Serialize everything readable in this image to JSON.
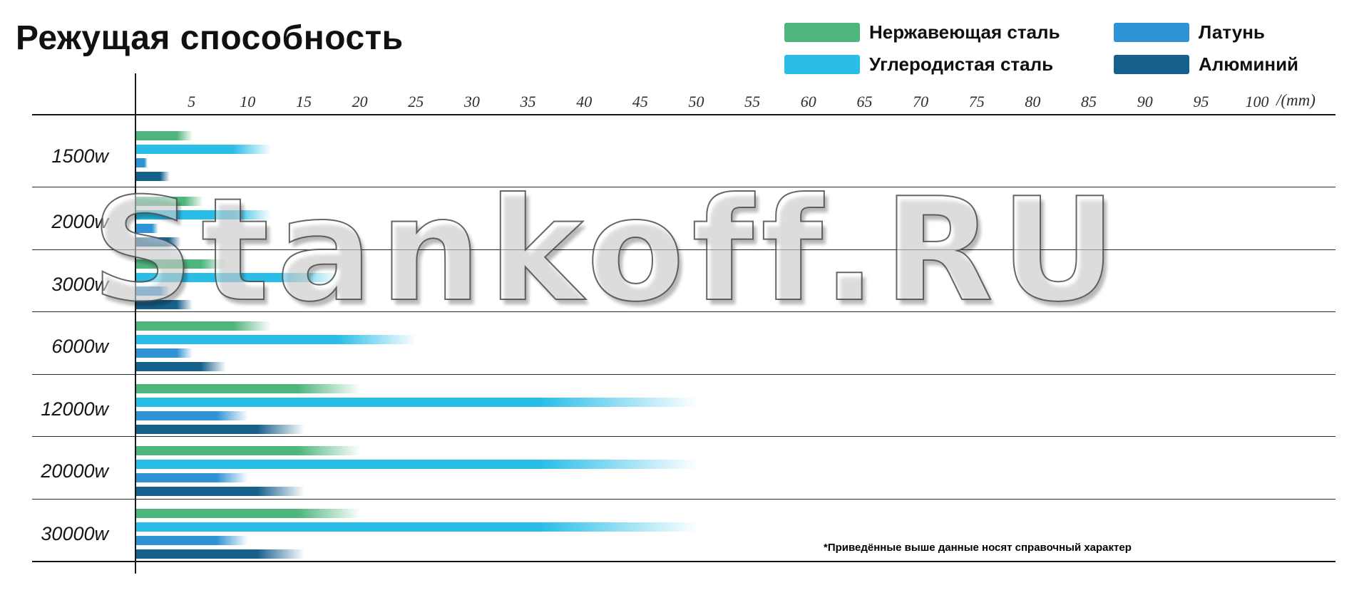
{
  "title": "Режущая способность",
  "watermark": "Stankoff.RU",
  "footnote": "*Приведённые выше данные носят справочный характер",
  "legend_items": [
    {
      "key": "stainless",
      "label": "Нержавеющая сталь",
      "color": "#4eb57d"
    },
    {
      "key": "carbon",
      "label": "Углеродистая сталь",
      "color": "#29bde8"
    },
    {
      "key": "brass",
      "label": "Латунь",
      "color": "#2e93d4"
    },
    {
      "key": "aluminum",
      "label": "Алюминий",
      "color": "#16608c"
    }
  ],
  "axis": {
    "unit_label": "/(mm)",
    "ticks": [
      5,
      10,
      15,
      20,
      25,
      30,
      35,
      40,
      45,
      50,
      55,
      60,
      65,
      70,
      75,
      80,
      85,
      90,
      95,
      100
    ],
    "max": 100
  },
  "chart_data": {
    "type": "bar",
    "orientation": "horizontal",
    "title": "Режущая способность",
    "xlabel": "mm",
    "xlim": [
      0,
      100
    ],
    "grid": "row-separators",
    "legend_position": "top-right",
    "categories": [
      "1500w",
      "2000w",
      "3000w",
      "6000w",
      "12000w",
      "20000w",
      "30000w"
    ],
    "series": [
      {
        "name": "Нержавеющая сталь",
        "key": "stainless",
        "color": "#4eb57d",
        "values": [
          5,
          6,
          8,
          12,
          20,
          20,
          20
        ]
      },
      {
        "name": "Углеродистая сталь",
        "key": "carbon",
        "color": "#29bde8",
        "values": [
          12,
          12,
          18,
          25,
          50,
          50,
          50
        ]
      },
      {
        "name": "Латунь",
        "key": "brass",
        "color": "#2e93d4",
        "values": [
          1,
          2,
          3,
          5,
          10,
          10,
          10
        ]
      },
      {
        "name": "Алюминий",
        "key": "aluminum",
        "color": "#16608c",
        "values": [
          3,
          4,
          5,
          8,
          15,
          15,
          15
        ]
      }
    ]
  }
}
